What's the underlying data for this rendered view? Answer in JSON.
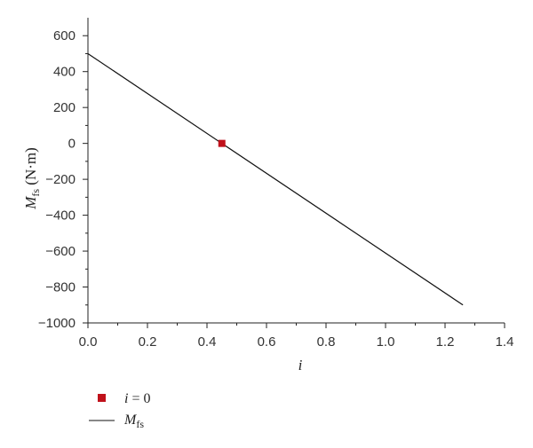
{
  "chart_data": {
    "type": "line",
    "xlabel": "i",
    "ylabel": {
      "main": "M",
      "sub": "fs",
      "unit": " (N·m)"
    },
    "xlim": [
      0.0,
      1.4
    ],
    "ylim": [
      -1000,
      700
    ],
    "x_ticks": [
      0.0,
      0.2,
      0.4,
      0.6,
      0.8,
      1.0,
      1.2,
      1.4
    ],
    "x_tick_labels": [
      "0.0",
      "0.2",
      "0.4",
      "0.6",
      "0.8",
      "1.0",
      "1.2",
      "1.4"
    ],
    "y_ticks": [
      600,
      400,
      200,
      0,
      -200,
      -400,
      -600,
      -800,
      -1000
    ],
    "y_tick_labels": [
      "600",
      "400",
      "200",
      "0",
      "−200",
      "−400",
      "−600",
      "−800",
      "−1000"
    ],
    "grid": false,
    "series": [
      {
        "kind": "line",
        "color": "#111111",
        "x": [
          0.0,
          1.26
        ],
        "y": [
          500,
          -900
        ],
        "legend": {
          "main": "M",
          "sub": "fs"
        }
      },
      {
        "kind": "marker",
        "color": "#c0111b",
        "marker": "square",
        "x": [
          0.45
        ],
        "y": [
          0
        ],
        "legend": {
          "main": "i",
          "rest": " = 0"
        }
      }
    ],
    "legend_position": "bottom-left"
  }
}
